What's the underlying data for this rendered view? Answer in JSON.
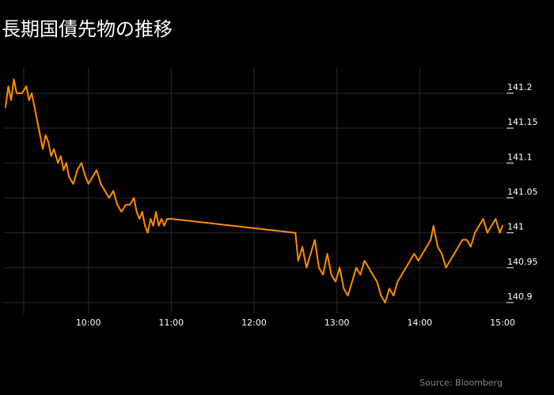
{
  "title": "長期国債先物の推移",
  "source": "Source: Bloomberg",
  "colors": {
    "background": "#000000",
    "line": "#ff8c00",
    "grid": "#2a2a2a",
    "text": "#ffffff",
    "source_text": "#8a8a8a"
  },
  "chart_data": {
    "type": "line",
    "title": "長期国債先物の推移",
    "xlabel": "",
    "ylabel": "",
    "x_ticks": [
      "10:00",
      "11:00",
      "12:00",
      "13:00",
      "14:00",
      "15:00"
    ],
    "y_ticks": [
      "141.2",
      "141.15",
      "141.1",
      "141.05",
      "141",
      "140.95",
      "140.9"
    ],
    "xlim": [
      "09:00",
      "15:00"
    ],
    "ylim": [
      140.885,
      141.225
    ],
    "y_axis_side": "right",
    "grid": true,
    "series": [
      {
        "values": [
          [
            "09:00",
            141.18
          ],
          [
            "09:02",
            141.21
          ],
          [
            "09:04",
            141.19
          ],
          [
            "09:06",
            141.22
          ],
          [
            "09:08",
            141.2
          ],
          [
            "09:12",
            141.2
          ],
          [
            "09:15",
            141.21
          ],
          [
            "09:17",
            141.19
          ],
          [
            "09:19",
            141.2
          ],
          [
            "09:21",
            141.18
          ],
          [
            "09:23",
            141.16
          ],
          [
            "09:25",
            141.14
          ],
          [
            "09:27",
            141.12
          ],
          [
            "09:29",
            141.14
          ],
          [
            "09:31",
            141.13
          ],
          [
            "09:33",
            141.11
          ],
          [
            "09:35",
            141.12
          ],
          [
            "09:38",
            141.1
          ],
          [
            "09:40",
            141.11
          ],
          [
            "09:42",
            141.09
          ],
          [
            "09:44",
            141.1
          ],
          [
            "09:46",
            141.08
          ],
          [
            "09:49",
            141.07
          ],
          [
            "09:52",
            141.09
          ],
          [
            "09:55",
            141.1
          ],
          [
            "09:58",
            141.08
          ],
          [
            "10:00",
            141.07
          ],
          [
            "10:03",
            141.08
          ],
          [
            "10:06",
            141.09
          ],
          [
            "10:09",
            141.07
          ],
          [
            "10:12",
            141.06
          ],
          [
            "10:15",
            141.05
          ],
          [
            "10:18",
            141.06
          ],
          [
            "10:21",
            141.04
          ],
          [
            "10:24",
            141.03
          ],
          [
            "10:27",
            141.04
          ],
          [
            "10:30",
            141.04
          ],
          [
            "10:33",
            141.05
          ],
          [
            "10:35",
            141.03
          ],
          [
            "10:37",
            141.02
          ],
          [
            "10:39",
            141.03
          ],
          [
            "10:41",
            141.01
          ],
          [
            "10:43",
            141.0
          ],
          [
            "10:45",
            141.02
          ],
          [
            "10:47",
            141.01
          ],
          [
            "10:49",
            141.03
          ],
          [
            "10:51",
            141.01
          ],
          [
            "10:53",
            141.02
          ],
          [
            "10:55",
            141.01
          ],
          [
            "10:57",
            141.02
          ],
          [
            "11:00",
            141.02
          ],
          [
            "12:30",
            141.0
          ],
          [
            "12:32",
            140.96
          ],
          [
            "12:35",
            140.98
          ],
          [
            "12:38",
            140.95
          ],
          [
            "12:41",
            140.97
          ],
          [
            "12:44",
            140.99
          ],
          [
            "12:47",
            140.95
          ],
          [
            "12:50",
            140.94
          ],
          [
            "12:53",
            140.97
          ],
          [
            "12:56",
            140.94
          ],
          [
            "12:59",
            140.93
          ],
          [
            "13:02",
            140.95
          ],
          [
            "13:05",
            140.92
          ],
          [
            "13:08",
            140.91
          ],
          [
            "13:11",
            140.93
          ],
          [
            "13:14",
            140.95
          ],
          [
            "13:17",
            140.94
          ],
          [
            "13:20",
            140.96
          ],
          [
            "13:23",
            140.95
          ],
          [
            "13:26",
            140.94
          ],
          [
            "13:29",
            140.93
          ],
          [
            "13:32",
            140.91
          ],
          [
            "13:35",
            140.9
          ],
          [
            "13:38",
            140.92
          ],
          [
            "13:41",
            140.91
          ],
          [
            "13:44",
            140.93
          ],
          [
            "13:47",
            140.94
          ],
          [
            "13:50",
            140.95
          ],
          [
            "13:53",
            140.96
          ],
          [
            "13:56",
            140.97
          ],
          [
            "13:59",
            140.96
          ],
          [
            "14:02",
            140.97
          ],
          [
            "14:05",
            140.98
          ],
          [
            "14:08",
            140.99
          ],
          [
            "14:10",
            141.01
          ],
          [
            "14:13",
            140.98
          ],
          [
            "14:16",
            140.97
          ],
          [
            "14:19",
            140.95
          ],
          [
            "14:22",
            140.96
          ],
          [
            "14:25",
            140.97
          ],
          [
            "14:28",
            140.98
          ],
          [
            "14:31",
            140.99
          ],
          [
            "14:34",
            140.99
          ],
          [
            "14:37",
            140.98
          ],
          [
            "14:40",
            141.0
          ],
          [
            "14:43",
            141.01
          ],
          [
            "14:46",
            141.02
          ],
          [
            "14:49",
            141.0
          ],
          [
            "14:52",
            141.01
          ],
          [
            "14:55",
            141.02
          ],
          [
            "14:58",
            141.0
          ],
          [
            "15:00",
            141.01
          ]
        ]
      }
    ]
  }
}
